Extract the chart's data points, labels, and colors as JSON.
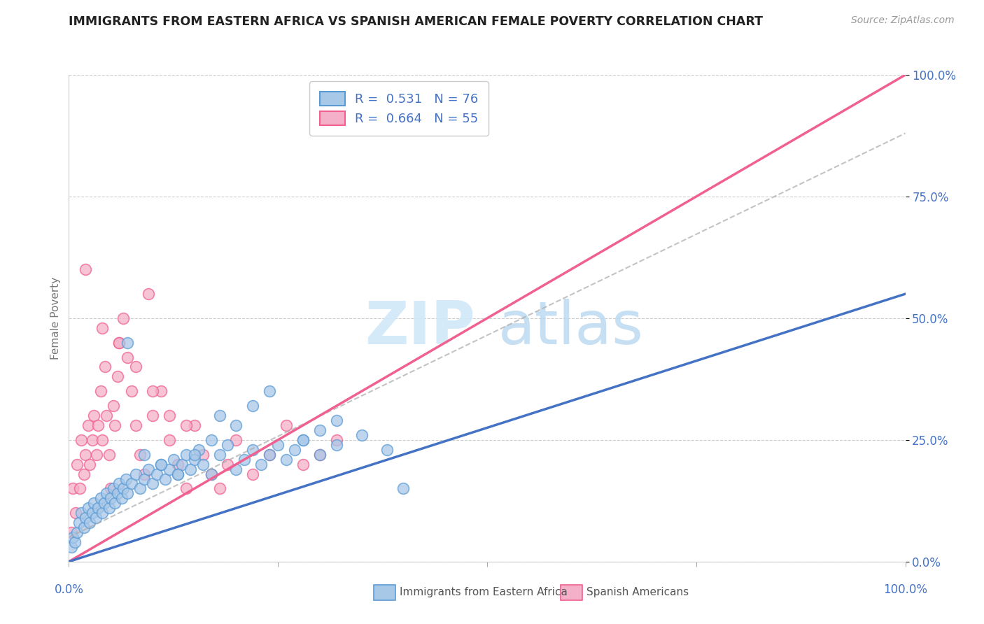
{
  "title": "IMMIGRANTS FROM EASTERN AFRICA VS SPANISH AMERICAN FEMALE POVERTY CORRELATION CHART",
  "source": "Source: ZipAtlas.com",
  "ylabel": "Female Poverty",
  "ytick_values": [
    0,
    25,
    50,
    75,
    100
  ],
  "xlim": [
    0,
    100
  ],
  "ylim": [
    0,
    100
  ],
  "blue_R": "0.531",
  "blue_N": "76",
  "pink_R": "0.664",
  "pink_N": "55",
  "blue_label": "Immigrants from Eastern Africa",
  "pink_label": "Spanish Americans",
  "blue_scatter_color": "#a8c8e8",
  "blue_scatter_edge": "#5b9bd5",
  "pink_scatter_color": "#f4b0c8",
  "pink_scatter_edge": "#f06090",
  "blue_line_color": "#4472c4",
  "pink_line_color": "#f06090",
  "gray_dash_color": "#aaaaaa",
  "axis_label_color": "#4472c4",
  "title_color": "#222222",
  "source_color": "#999999",
  "grid_color": "#cccccc",
  "watermark_zip_color": "#d0e8f8",
  "watermark_atlas_color": "#b8d8f0",
  "blue_line_x0": 0,
  "blue_line_y0": 0,
  "blue_line_x1": 100,
  "blue_line_y1": 55,
  "pink_line_x0": 0,
  "pink_line_y0": 0,
  "pink_line_x1": 100,
  "pink_line_y1": 100,
  "gray_line_x0": 0,
  "gray_line_y0": 5,
  "gray_line_x1": 100,
  "gray_line_y1": 88,
  "blue_pts_x": [
    0.3,
    0.5,
    0.7,
    1.0,
    1.2,
    1.5,
    1.8,
    2.0,
    2.3,
    2.5,
    2.8,
    3.0,
    3.2,
    3.5,
    3.8,
    4.0,
    4.2,
    4.5,
    4.8,
    5.0,
    5.3,
    5.5,
    5.8,
    6.0,
    6.3,
    6.5,
    6.8,
    7.0,
    7.5,
    8.0,
    8.5,
    9.0,
    9.5,
    10.0,
    10.5,
    11.0,
    11.5,
    12.0,
    12.5,
    13.0,
    13.5,
    14.0,
    14.5,
    15.0,
    15.5,
    16.0,
    17.0,
    18.0,
    19.0,
    20.0,
    21.0,
    22.0,
    23.0,
    24.0,
    25.0,
    26.0,
    27.0,
    28.0,
    30.0,
    32.0,
    35.0,
    38.0,
    40.0,
    18.0,
    20.0,
    22.0,
    24.0,
    28.0,
    30.0,
    32.0,
    7.0,
    9.0,
    11.0,
    13.0,
    15.0,
    17.0
  ],
  "blue_pts_y": [
    3,
    5,
    4,
    6,
    8,
    10,
    7,
    9,
    11,
    8,
    10,
    12,
    9,
    11,
    13,
    10,
    12,
    14,
    11,
    13,
    15,
    12,
    14,
    16,
    13,
    15,
    17,
    14,
    16,
    18,
    15,
    17,
    19,
    16,
    18,
    20,
    17,
    19,
    21,
    18,
    20,
    22,
    19,
    21,
    23,
    20,
    18,
    22,
    24,
    19,
    21,
    23,
    20,
    22,
    24,
    21,
    23,
    25,
    22,
    24,
    26,
    23,
    15,
    30,
    28,
    32,
    35,
    25,
    27,
    29,
    45,
    22,
    20,
    18,
    22,
    25
  ],
  "pink_pts_x": [
    0.3,
    0.5,
    0.8,
    1.0,
    1.3,
    1.5,
    1.8,
    2.0,
    2.3,
    2.5,
    2.8,
    3.0,
    3.3,
    3.5,
    3.8,
    4.0,
    4.3,
    4.5,
    4.8,
    5.0,
    5.3,
    5.5,
    5.8,
    6.0,
    6.5,
    7.0,
    7.5,
    8.0,
    8.5,
    9.0,
    9.5,
    10.0,
    11.0,
    12.0,
    13.0,
    14.0,
    15.0,
    16.0,
    17.0,
    18.0,
    19.0,
    20.0,
    22.0,
    24.0,
    26.0,
    28.0,
    30.0,
    32.0,
    2.0,
    4.0,
    6.0,
    8.0,
    10.0,
    12.0,
    14.0
  ],
  "pink_pts_y": [
    6,
    15,
    10,
    20,
    15,
    25,
    18,
    22,
    28,
    20,
    25,
    30,
    22,
    28,
    35,
    25,
    40,
    30,
    22,
    15,
    32,
    28,
    38,
    45,
    50,
    42,
    35,
    28,
    22,
    18,
    55,
    30,
    35,
    25,
    20,
    15,
    28,
    22,
    18,
    15,
    20,
    25,
    18,
    22,
    28,
    20,
    22,
    25,
    60,
    48,
    45,
    40,
    35,
    30,
    28
  ]
}
